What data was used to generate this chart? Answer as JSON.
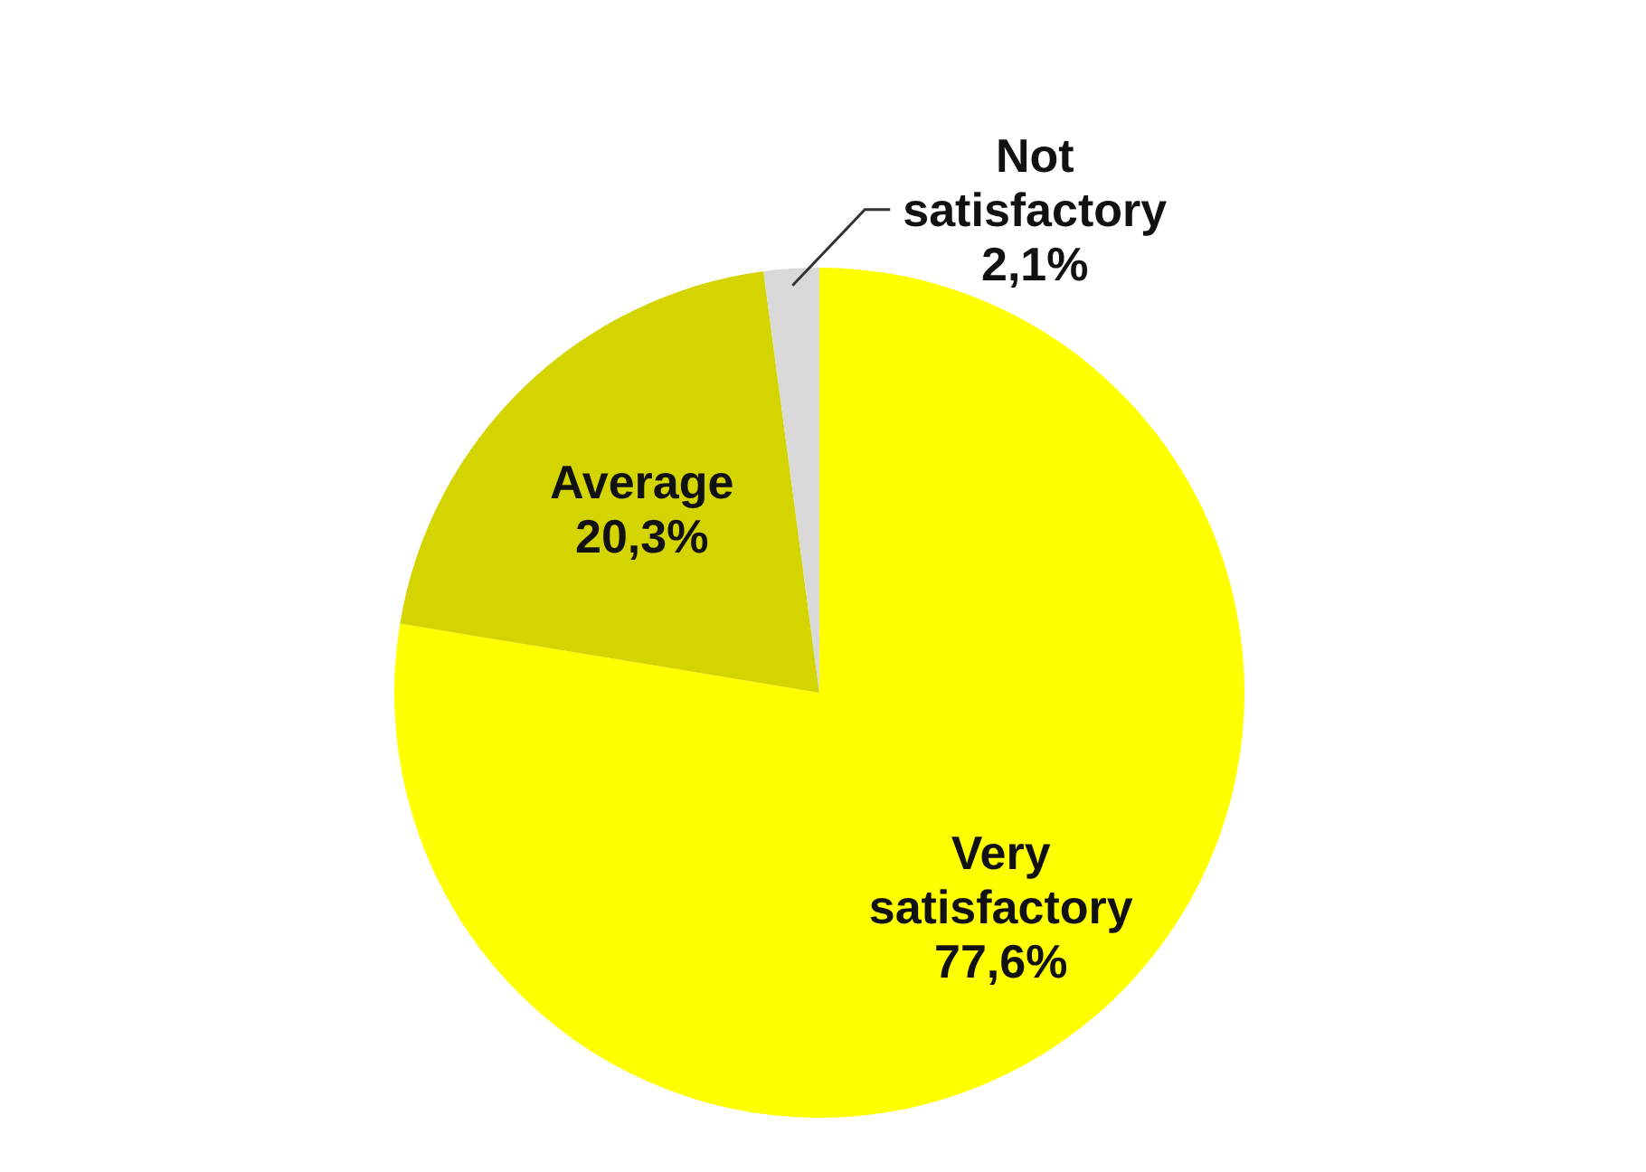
{
  "chart_data": {
    "type": "pie",
    "categories": [
      "Very satisfactory",
      "Average",
      "Not satisfactory"
    ],
    "values": [
      77.6,
      20.3,
      2.1
    ],
    "colors": [
      "#ffff00",
      "#d4d400",
      "#d9d9d9"
    ],
    "value_labels": [
      "77,6%",
      "20,3%",
      "2,1%"
    ]
  }
}
